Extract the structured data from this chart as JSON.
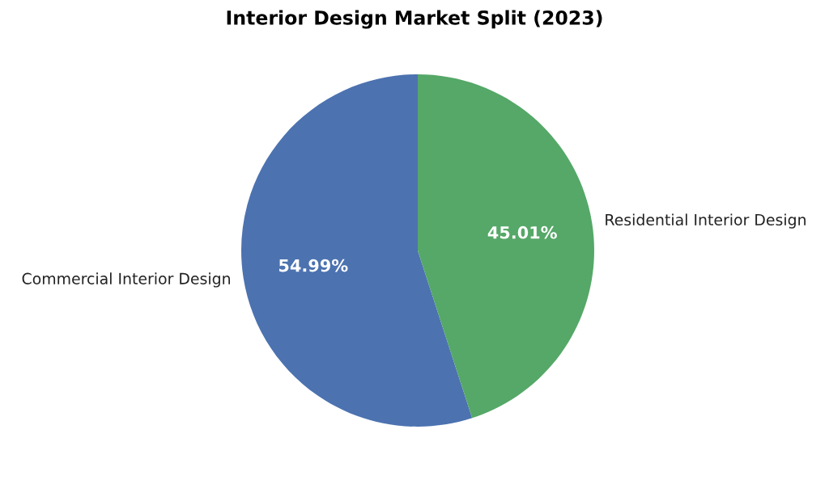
{
  "chart_data": {
    "type": "pie",
    "title": "Interior Design Market Split (2023)",
    "categories": [
      "Commercial Interior Design",
      "Residential Interior Design"
    ],
    "values": [
      54.99,
      45.01
    ],
    "colors": [
      "#4c72b0",
      "#55a868"
    ],
    "value_labels": [
      "54.99%",
      "45.01%"
    ]
  }
}
